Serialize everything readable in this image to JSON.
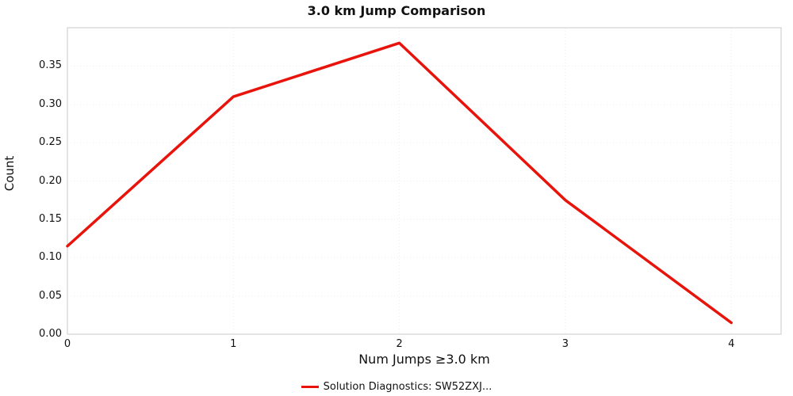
{
  "chart": {
    "title": "3.0 km Jump Comparison",
    "ylabel": "Count",
    "xlabel": "Num Jumps ≥3.0 km",
    "legend_label": "Solution Diagnostics: SW52ZXJ...",
    "line_color": "#e8140c",
    "border_color": "#c9c9c9",
    "grid_color": "#ececec"
  },
  "chart_data": {
    "type": "line",
    "title": "3.0 km Jump Comparison",
    "xlabel": "Num Jumps ≥3.0 km",
    "ylabel": "Count",
    "series": [
      {
        "name": "Solution Diagnostics: SW52ZXJ...",
        "color": "#e8140c",
        "x": [
          0,
          1,
          2,
          3,
          4
        ],
        "values": [
          0.115,
          0.31,
          0.38,
          0.175,
          0.015
        ]
      }
    ],
    "xlim": [
      0,
      4.3
    ],
    "ylim": [
      0,
      0.4
    ],
    "x_ticks": [
      0,
      1,
      2,
      3,
      4
    ],
    "y_ticks": [
      0.0,
      0.05,
      0.1,
      0.15,
      0.2,
      0.25,
      0.3,
      0.35
    ],
    "grid": true,
    "legend_position": "bottom-center"
  }
}
